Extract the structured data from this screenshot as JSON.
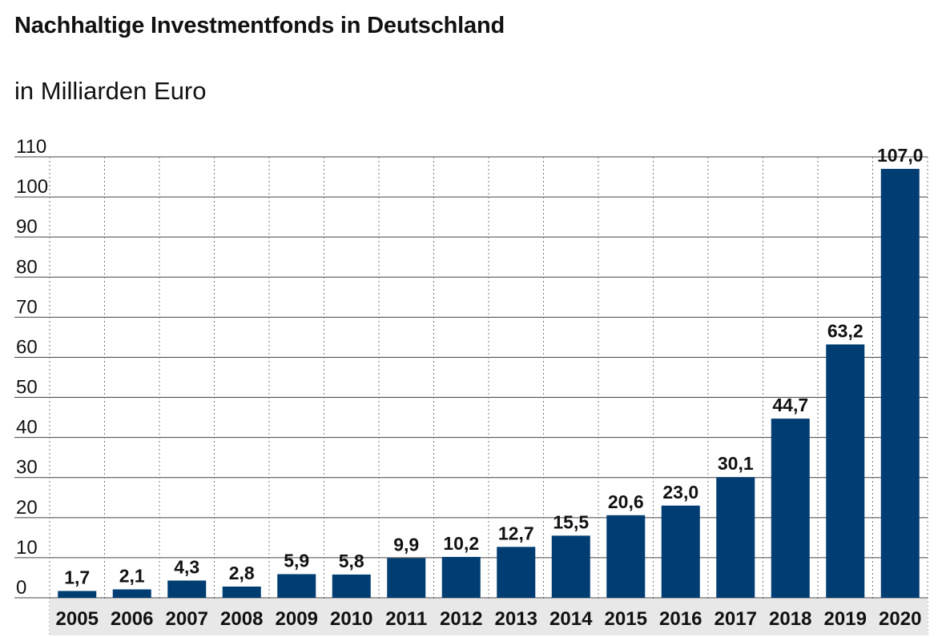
{
  "title": "Nachhaltige Investmentfonds in Deutschland",
  "subtitle": "in Milliarden Euro",
  "colors": {
    "bar": "#003d72",
    "grid": "#444444",
    "axis_band": "#e8e8e8",
    "text": "#111111"
  },
  "chart_data": {
    "type": "bar",
    "title": "Nachhaltige Investmentfonds in Deutschland",
    "subtitle": "in Milliarden Euro",
    "xlabel": "",
    "ylabel": "",
    "categories": [
      "2005",
      "2006",
      "2007",
      "2008",
      "2009",
      "2010",
      "2011",
      "2012",
      "2013",
      "2014",
      "2015",
      "2016",
      "2017",
      "2018",
      "2019",
      "2020"
    ],
    "values": [
      1.7,
      2.1,
      4.3,
      2.8,
      5.9,
      5.8,
      9.9,
      10.2,
      12.7,
      15.5,
      20.6,
      23.0,
      30.1,
      44.7,
      63.2,
      107.0
    ],
    "value_labels": [
      "1,7",
      "2,1",
      "4,3",
      "2,8",
      "5,9",
      "5,8",
      "9,9",
      "10,2",
      "12,7",
      "15,5",
      "20,6",
      "23,0",
      "30,1",
      "44,7",
      "63,2",
      "107,0"
    ],
    "yticks": [
      0,
      10,
      20,
      30,
      40,
      50,
      60,
      70,
      80,
      90,
      100,
      110
    ],
    "ylim": [
      0,
      110
    ],
    "grid": true,
    "legend": "none"
  }
}
